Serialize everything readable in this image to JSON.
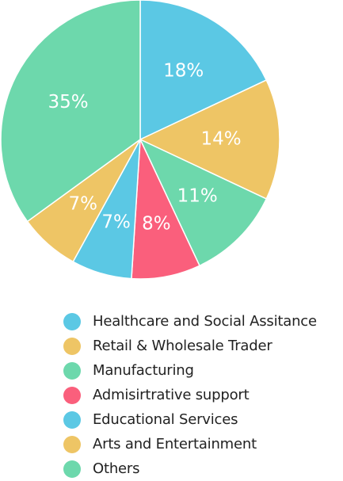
{
  "chart_data": {
    "type": "pie",
    "title": "",
    "categories": [
      "Healthcare and Social Assitance",
      "Retail & Wholesale Trader",
      "Manufacturing",
      "Admisirtrative support",
      "Educational Services",
      "Arts and Entertainment",
      "Others"
    ],
    "values": [
      18,
      14,
      11,
      8,
      7,
      7,
      35
    ],
    "value_labels": [
      "18%",
      "14%",
      "11%",
      "8%",
      "7%",
      "7%",
      "35%"
    ],
    "colors": [
      "#5bc8e4",
      "#eec565",
      "#6dd8ac",
      "#fa5f7c",
      "#5bc8e4",
      "#eec565",
      "#6dd8ac"
    ],
    "start_angle": "top",
    "direction": "clockwise",
    "legend_position": "bottom"
  },
  "colors": {
    "slice_label_text": "#ffffff",
    "legend_text": "#222222",
    "background": "#ffffff"
  }
}
